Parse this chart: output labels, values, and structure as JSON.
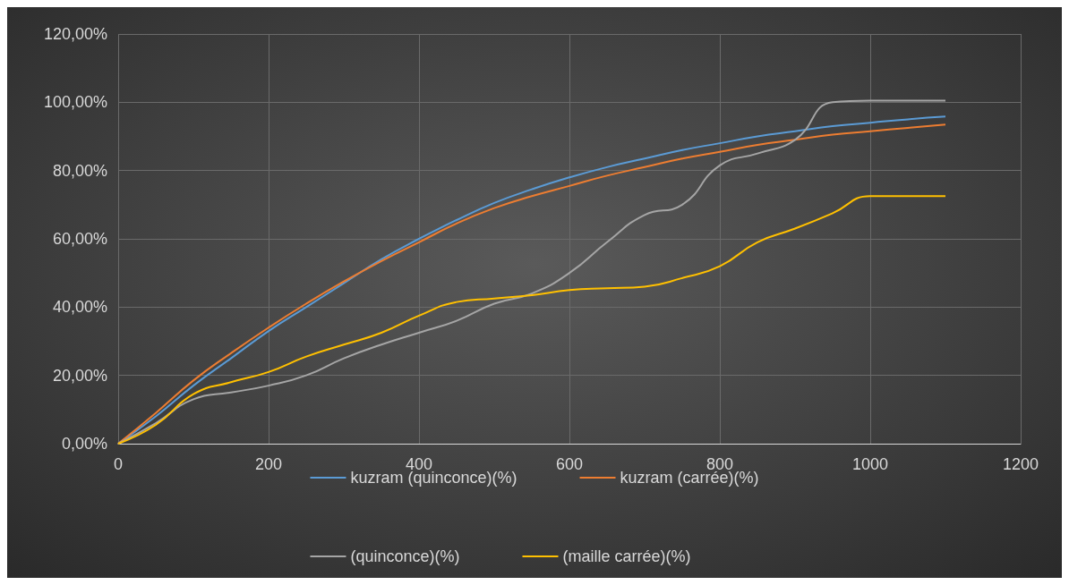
{
  "chart_data": {
    "type": "line",
    "x": [
      0,
      50,
      100,
      150,
      200,
      250,
      300,
      350,
      400,
      450,
      500,
      550,
      600,
      650,
      700,
      750,
      800,
      850,
      900,
      950,
      1000,
      1050,
      1100
    ],
    "series": [
      {
        "name": "kuzram (quinconce)(%)",
        "color": "#5b9bd5",
        "values": [
          0,
          8,
          17,
          25,
          33,
          40,
          47,
          54,
          60,
          65.5,
          70.5,
          74.5,
          78,
          81,
          83.5,
          86,
          88,
          90,
          91.5,
          93,
          94,
          95,
          95.8
        ]
      },
      {
        "name": "kuzram (carrée)(%)",
        "color": "#ed7d31",
        "values": [
          0,
          9,
          18.5,
          26.5,
          34,
          41,
          47.5,
          53.5,
          59,
          64.5,
          69,
          72.5,
          75.5,
          78.5,
          81,
          83.5,
          85.5,
          87.5,
          89,
          90.5,
          91.5,
          92.5,
          93.5
        ]
      },
      {
        "name": "(quinconce)(%)",
        "color": "#a5a5a5",
        "values": [
          0,
          6,
          13,
          15,
          17,
          20,
          25,
          29,
          32.5,
          36,
          41,
          44,
          50,
          59,
          67,
          70,
          81.5,
          85,
          89,
          100,
          100.5,
          100.5,
          100.5
        ]
      },
      {
        "name": "(maille carrée)(%)",
        "color": "#ffc000",
        "values": [
          0,
          5.5,
          14.5,
          18,
          21,
          25.5,
          29,
          32.5,
          37.5,
          41.5,
          42.5,
          43.5,
          45,
          45.5,
          46,
          48.5,
          52,
          59,
          63,
          67.5,
          72.5,
          72.5,
          72.5
        ]
      }
    ],
    "xlim": [
      0,
      1200
    ],
    "xticks": [
      0,
      200,
      400,
      600,
      800,
      1000,
      1200
    ],
    "ylim": [
      0,
      120
    ],
    "yticks": [
      {
        "value": 0,
        "label": "0,00%"
      },
      {
        "value": 20,
        "label": "20,00%"
      },
      {
        "value": 40,
        "label": "40,00%"
      },
      {
        "value": 60,
        "label": "60,00%"
      },
      {
        "value": 80,
        "label": "80,00%"
      },
      {
        "value": 100,
        "label": "100,00%"
      },
      {
        "value": 120,
        "label": "120,00%"
      }
    ],
    "grid": true,
    "legend": "bottom",
    "marker": "none",
    "line_style": "solid"
  }
}
